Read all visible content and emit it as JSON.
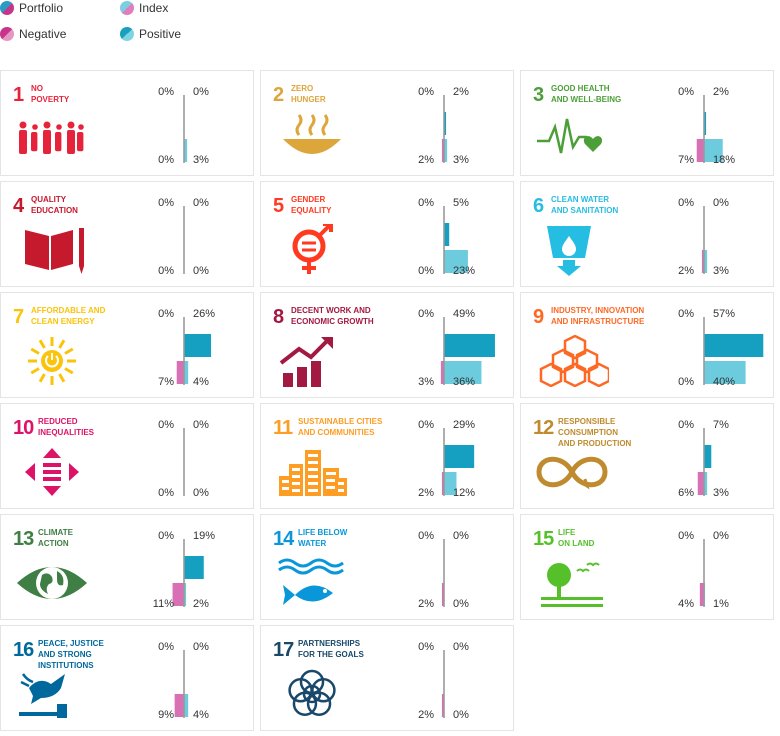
{
  "legend": [
    {
      "label": "Portfolio",
      "c1": "#2a9bc3",
      "c2": "#c8348a"
    },
    {
      "label": "Index",
      "c1": "#7ccfe0",
      "c2": "#e07dbc"
    },
    {
      "label": "Negative",
      "c1": "#c8348a",
      "c2": "#e895c6"
    },
    {
      "label": "Positive",
      "c1": "#1a9fbe",
      "c2": "#7fd4e3"
    }
  ],
  "colors": {
    "portfolio_positive": "#159fc0",
    "index_positive": "#6ccbdc",
    "portfolio_negative": "#c8348a",
    "index_negative": "#d970b5",
    "axis": "#999999"
  },
  "chart_data": {
    "type": "bar",
    "xlim": [
      -30,
      60
    ],
    "goals": [
      {
        "number": "1",
        "title": "NO\nPOVERTY",
        "color": "#e5243b",
        "icon": "family-icon",
        "portfolio": {
          "neg": 0,
          "pos": 0
        },
        "index": {
          "neg": 0,
          "pos": 3
        },
        "labels": {
          "p_neg": "0%",
          "p_pos": "0%",
          "i_neg": "0%",
          "i_pos": "3%"
        }
      },
      {
        "number": "2",
        "title": "ZERO\nHUNGER",
        "color": "#dda63a",
        "icon": "food-bowl-icon",
        "portfolio": {
          "neg": 0,
          "pos": 2
        },
        "index": {
          "neg": 2,
          "pos": 3
        },
        "labels": {
          "p_neg": "0%",
          "p_pos": "2%",
          "i_neg": "2%",
          "i_pos": "3%"
        }
      },
      {
        "number": "3",
        "title": "GOOD HEALTH\nAND WELL-BEING",
        "color": "#4c9f38",
        "icon": "heartbeat-icon",
        "portfolio": {
          "neg": 0,
          "pos": 2
        },
        "index": {
          "neg": 7,
          "pos": 18
        },
        "labels": {
          "p_neg": "0%",
          "p_pos": "2%",
          "i_neg": "7%",
          "i_pos": "18%"
        }
      },
      {
        "number": "4",
        "title": "QUALITY\nEDUCATION",
        "color": "#c5192d",
        "icon": "book-pencil-icon",
        "portfolio": {
          "neg": 0,
          "pos": 0
        },
        "index": {
          "neg": 0,
          "pos": 0
        },
        "labels": {
          "p_neg": "0%",
          "p_pos": "0%",
          "i_neg": "0%",
          "i_pos": "0%"
        }
      },
      {
        "number": "5",
        "title": "GENDER\nEQUALITY",
        "color": "#ff3a21",
        "icon": "gender-equality-icon",
        "portfolio": {
          "neg": 0,
          "pos": 5
        },
        "index": {
          "neg": 0,
          "pos": 23
        },
        "labels": {
          "p_neg": "0%",
          "p_pos": "5%",
          "i_neg": "0%",
          "i_pos": "23%"
        }
      },
      {
        "number": "6",
        "title": "CLEAN WATER\nAND SANITATION",
        "color": "#26bde2",
        "icon": "water-glass-icon",
        "portfolio": {
          "neg": 0,
          "pos": 0
        },
        "index": {
          "neg": 2,
          "pos": 3
        },
        "labels": {
          "p_neg": "0%",
          "p_pos": "0%",
          "i_neg": "2%",
          "i_pos": "3%"
        }
      },
      {
        "number": "7",
        "title": "AFFORDABLE AND\nCLEAN ENERGY",
        "color": "#fcc30b",
        "icon": "sun-power-icon",
        "portfolio": {
          "neg": 0,
          "pos": 26
        },
        "index": {
          "neg": 7,
          "pos": 4
        },
        "labels": {
          "p_neg": "0%",
          "p_pos": "26%",
          "i_neg": "7%",
          "i_pos": "4%"
        }
      },
      {
        "number": "8",
        "title": "DECENT WORK AND\nECONOMIC GROWTH",
        "color": "#a21942",
        "icon": "growth-chart-icon",
        "portfolio": {
          "neg": 0,
          "pos": 49
        },
        "index": {
          "neg": 3,
          "pos": 36
        },
        "labels": {
          "p_neg": "0%",
          "p_pos": "49%",
          "i_neg": "3%",
          "i_pos": "36%"
        }
      },
      {
        "number": "9",
        "title": "INDUSTRY, INNOVATION\nAND INFRASTRUCTURE",
        "color": "#fd6925",
        "icon": "cubes-icon",
        "portfolio": {
          "neg": 0,
          "pos": 57
        },
        "index": {
          "neg": 0,
          "pos": 40
        },
        "labels": {
          "p_neg": "0%",
          "p_pos": "57%",
          "i_neg": "0%",
          "i_pos": "40%"
        }
      },
      {
        "number": "10",
        "title": "REDUCED\nINEQUALITIES",
        "color": "#dd1367",
        "icon": "equality-arrows-icon",
        "portfolio": {
          "neg": 0,
          "pos": 0
        },
        "index": {
          "neg": 0,
          "pos": 0
        },
        "labels": {
          "p_neg": "0%",
          "p_pos": "0%",
          "i_neg": "0%",
          "i_pos": "0%"
        }
      },
      {
        "number": "11",
        "title": "SUSTAINABLE CITIES\nAND COMMUNITIES",
        "color": "#fd9d24",
        "icon": "city-buildings-icon",
        "portfolio": {
          "neg": 0,
          "pos": 29
        },
        "index": {
          "neg": 2,
          "pos": 12
        },
        "labels": {
          "p_neg": "0%",
          "p_pos": "29%",
          "i_neg": "2%",
          "i_pos": "12%"
        }
      },
      {
        "number": "12",
        "title": "RESPONSIBLE\nCONSUMPTION\nAND PRODUCTION",
        "color": "#bf8b2e",
        "icon": "infinity-icon",
        "portfolio": {
          "neg": 0,
          "pos": 7
        },
        "index": {
          "neg": 6,
          "pos": 3
        },
        "labels": {
          "p_neg": "0%",
          "p_pos": "7%",
          "i_neg": "6%",
          "i_pos": "3%"
        }
      },
      {
        "number": "13",
        "title": "CLIMATE\nACTION",
        "color": "#3f7e44",
        "icon": "earth-eye-icon",
        "portfolio": {
          "neg": 0,
          "pos": 19
        },
        "index": {
          "neg": 11,
          "pos": 2
        },
        "labels": {
          "p_neg": "0%",
          "p_pos": "19%",
          "i_neg": "11%",
          "i_pos": "2%"
        }
      },
      {
        "number": "14",
        "title": "LIFE BELOW\nWATER",
        "color": "#0a97d9",
        "icon": "fish-waves-icon",
        "portfolio": {
          "neg": 0,
          "pos": 0
        },
        "index": {
          "neg": 2,
          "pos": 0
        },
        "labels": {
          "p_neg": "0%",
          "p_pos": "0%",
          "i_neg": "2%",
          "i_pos": "0%"
        }
      },
      {
        "number": "15",
        "title": "LIFE\nON LAND",
        "color": "#56c02b",
        "icon": "tree-birds-icon",
        "portfolio": {
          "neg": 0,
          "pos": 0
        },
        "index": {
          "neg": 4,
          "pos": 1
        },
        "labels": {
          "p_neg": "0%",
          "p_pos": "0%",
          "i_neg": "4%",
          "i_pos": "1%"
        }
      },
      {
        "number": "16",
        "title": "PEACE, JUSTICE\nAND STRONG\nINSTITUTIONS",
        "color": "#00689d",
        "icon": "dove-gavel-icon",
        "portfolio": {
          "neg": 0,
          "pos": 0
        },
        "index": {
          "neg": 9,
          "pos": 4
        },
        "labels": {
          "p_neg": "0%",
          "p_pos": "0%",
          "i_neg": "9%",
          "i_pos": "4%"
        }
      },
      {
        "number": "17",
        "title": "PARTNERSHIPS\nFOR THE GOALS",
        "color": "#19486a",
        "icon": "rings-icon",
        "portfolio": {
          "neg": 0,
          "pos": 0
        },
        "index": {
          "neg": 2,
          "pos": 0
        },
        "labels": {
          "p_neg": "0%",
          "p_pos": "0%",
          "i_neg": "2%",
          "i_pos": "0%"
        }
      }
    ]
  }
}
